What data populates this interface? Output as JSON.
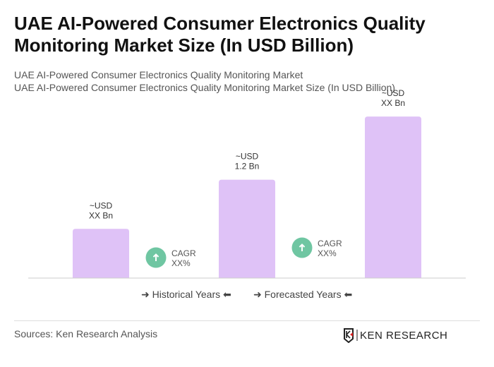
{
  "header": {
    "title": "UAE AI-Powered Consumer Electronics Quality Monitoring Market Size (In USD Billion)",
    "subtitle1": "UAE AI-Powered Consumer Electronics Quality Monitoring Market",
    "subtitle2": "UAE AI-Powered Consumer Electronics Quality Monitoring Market Size (In USD Billion)"
  },
  "chart_data": {
    "type": "bar",
    "categories": [
      "",
      "",
      ""
    ],
    "values": [
      0.6,
      1.2,
      1.97
    ],
    "data_labels": [
      [
        "~USD",
        "XX Bn"
      ],
      [
        "~USD",
        "1.2 Bn"
      ],
      [
        "~USD",
        "XX Bn"
      ]
    ],
    "cagr": [
      {
        "label": "CAGR",
        "value": "XX%"
      },
      {
        "label": "CAGR",
        "value": "XX%"
      }
    ],
    "bar_color": "#dfc2f7",
    "cagr_color": "#6fc6a2",
    "ylim": [
      0,
      2.1
    ],
    "grid": false
  },
  "legend": {
    "historical": "Historical Years",
    "forecasted": "Forecasted Years"
  },
  "footer": {
    "source": "Sources: Ken Research Analysis",
    "logo_text": "KEN RESEARCH"
  }
}
